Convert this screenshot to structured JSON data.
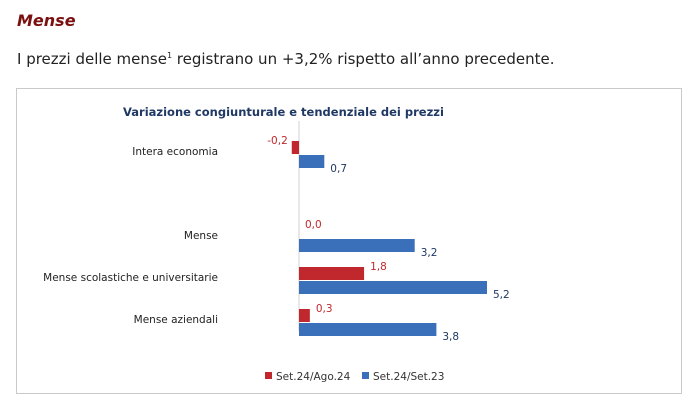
{
  "page": {
    "heading": "Mense",
    "sentence_before": "I prezzi delle mense",
    "sentence_footnote": "1",
    "sentence_after": " registrano un +3,2% rispetto all’anno precedente."
  },
  "colors": {
    "series1": "#c0282d",
    "series2": "#3a6fba",
    "heading": "#7a1010"
  },
  "chart_data": {
    "type": "bar",
    "orientation": "horizontal",
    "title": "Variazione congiunturale e tendenziale dei prezzi",
    "categories": [
      "Intera economia",
      "",
      "Mense",
      "Mense scolastiche e universitarie",
      "Mense aziendali"
    ],
    "category_labels": [
      "Intera economia",
      "Mense",
      "Mense scolastiche e universitarie",
      "Mense aziendali"
    ],
    "series": [
      {
        "name": "Set.24/Ago.24",
        "values": [
          -0.2,
          null,
          0.0,
          1.8,
          0.3
        ],
        "labels": [
          "-0,2",
          "",
          "0,0",
          "1,8",
          "0,3"
        ]
      },
      {
        "name": "Set.24/Set.23",
        "values": [
          0.7,
          null,
          3.2,
          5.2,
          3.8
        ],
        "labels": [
          "0,7",
          "",
          "3,2",
          "5,2",
          "3,8"
        ]
      }
    ],
    "xlim": [
      -0.2,
      5.2
    ],
    "grid": false,
    "legend": "bottom"
  }
}
